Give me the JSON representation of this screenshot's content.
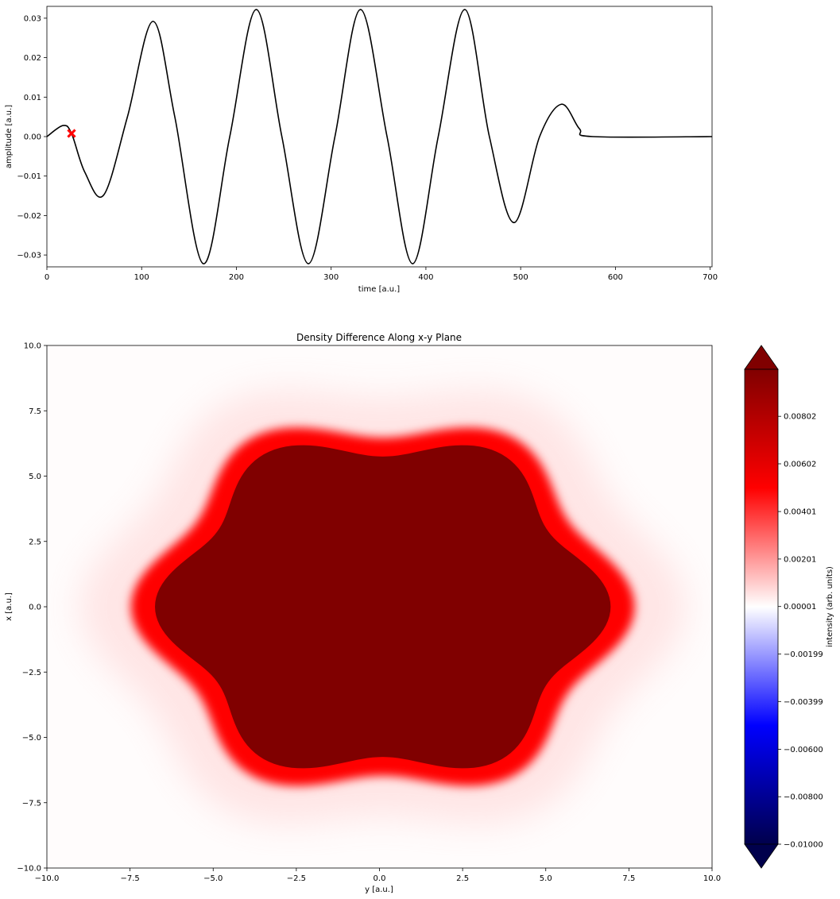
{
  "chart_data": [
    {
      "type": "line",
      "title": "",
      "xlabel": "time [a.u.]",
      "ylabel": "amplitude [a.u.]",
      "xlim": [
        0,
        702
      ],
      "ylim": [
        -0.033,
        0.033
      ],
      "grid": false,
      "x_ticks": [
        0,
        100,
        200,
        300,
        400,
        500,
        600,
        700
      ],
      "x_tick_labels": [
        "0",
        "100",
        "200",
        "300",
        "400",
        "500",
        "600",
        "700"
      ],
      "y_ticks": [
        -0.03,
        -0.02,
        -0.01,
        0.0,
        0.01,
        0.02,
        0.03
      ],
      "y_tick_labels": [
        "−0.03",
        "−0.02",
        "−0.01",
        "0.00",
        "0.01",
        "0.02",
        "0.03"
      ],
      "line_color": "#000000",
      "series_points": [
        [
          0,
          0.0
        ],
        [
          17,
          0.0028
        ],
        [
          26,
          0.0008
        ],
        [
          40,
          -0.009
        ],
        [
          60,
          -0.0148
        ],
        [
          85,
          0.005
        ],
        [
          112,
          0.0292
        ],
        [
          135,
          0.005
        ],
        [
          165,
          -0.0322
        ],
        [
          193,
          0.0
        ],
        [
          221,
          0.0322
        ],
        [
          248,
          0.0
        ],
        [
          276,
          -0.0322
        ],
        [
          304,
          0.0
        ],
        [
          331,
          0.0322
        ],
        [
          359,
          0.0
        ],
        [
          386,
          -0.0322
        ],
        [
          413,
          0.0
        ],
        [
          441,
          0.0322
        ],
        [
          467,
          0.0
        ],
        [
          493,
          -0.0218
        ],
        [
          520,
          0.0
        ],
        [
          543,
          0.0082
        ],
        [
          562,
          0.002
        ],
        [
          576,
          0.0
        ],
        [
          702,
          0.0
        ]
      ],
      "marker": {
        "x": 26,
        "y": 0.0008,
        "symbol": "x",
        "color": "#ff0000"
      }
    },
    {
      "type": "heatmap",
      "title": "Density Difference Along x-y Plane",
      "xlabel": "y [a.u.]",
      "ylabel": "x [a.u.]",
      "xlim": [
        -10.0,
        10.0
      ],
      "ylim": [
        -10.0,
        10.0
      ],
      "grid": false,
      "x_tick_labels": [
        "−10.0",
        "−7.5",
        "−5.0",
        "−2.5",
        "0.0",
        "2.5",
        "5.0",
        "7.5",
        "10.0"
      ],
      "y_tick_labels": [
        "−10.0",
        "−7.5",
        "−5.0",
        "−2.5",
        "0.0",
        "2.5",
        "5.0",
        "7.5",
        "10.0"
      ],
      "shape": {
        "description": "six-lobed region, saturated at max value",
        "center": [
          0.1,
          0.0
        ],
        "base_radius": 6.3,
        "lobe_amplitude": 0.55,
        "lobes": 6,
        "rim_width": 0.8,
        "halo_extent": 3.0
      },
      "colormap": "seismic",
      "colors": {
        "min": "#00004c",
        "blue": "#0000ff",
        "mid": "#ffffff",
        "red": "#ff0000",
        "max": "#800000"
      },
      "colorbar": {
        "label": "intensity (arb. units)",
        "vmin": -0.01,
        "vmax": 0.01,
        "extend": "both",
        "ticks": [
          -0.01,
          -0.008,
          -0.006,
          -0.00399,
          -0.00199,
          1e-05,
          0.00201,
          0.00401,
          0.00602,
          0.00802
        ],
        "tick_labels": [
          "−0.01000",
          "−0.00800",
          "−0.00600",
          "−0.00399",
          "−0.00199",
          "0.00001",
          "0.00201",
          "0.00401",
          "0.00602",
          "0.00802"
        ]
      }
    }
  ]
}
